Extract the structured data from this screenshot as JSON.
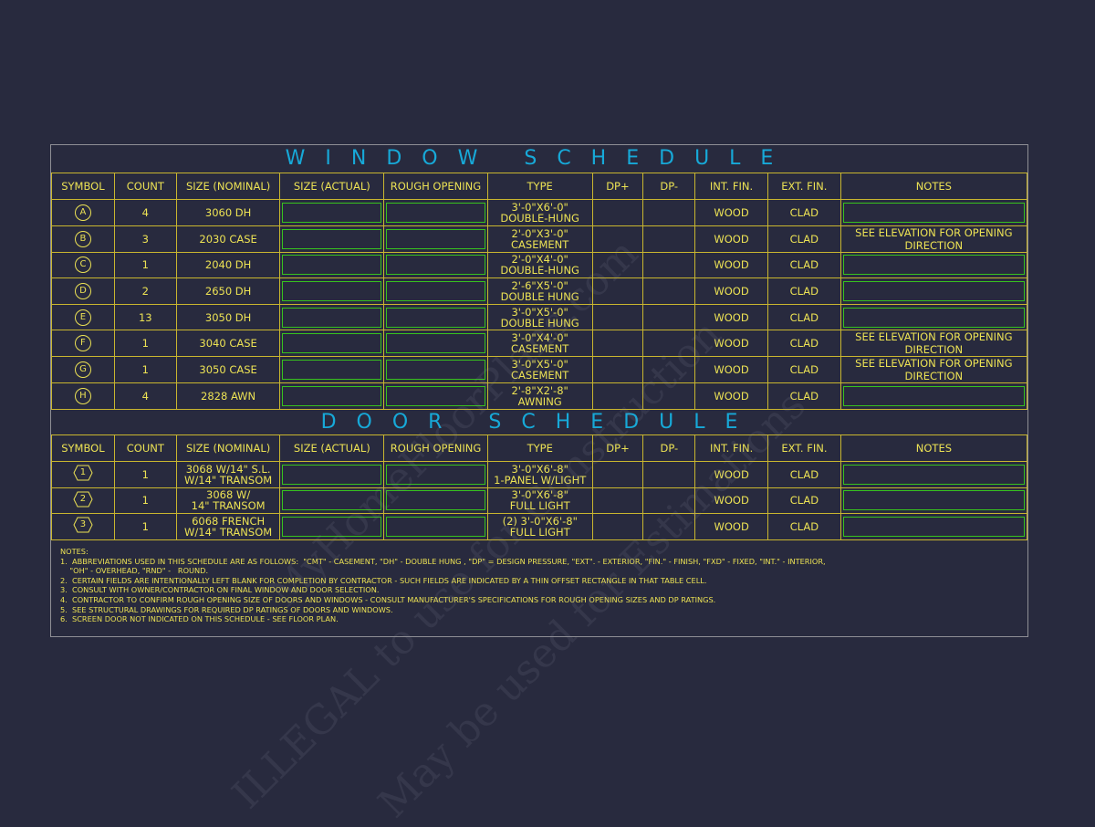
{
  "window_schedule": {
    "title": "WINDOW SCHEDULE",
    "headers": [
      "SYMBOL",
      "COUNT",
      "SIZE (NOMINAL)",
      "SIZE (ACTUAL)",
      "ROUGH OPENING",
      "TYPE",
      "DP+",
      "DP-",
      "INT. FIN.",
      "EXT. FIN.",
      "NOTES"
    ],
    "rows": [
      {
        "symbol": "A",
        "count": "4",
        "size": "3060 DH",
        "type1": "3'-0\"X6'-0\"",
        "type2": "DOUBLE-HUNG",
        "int": "WOOD",
        "ext": "CLAD",
        "notes": ""
      },
      {
        "symbol": "B",
        "count": "3",
        "size": "2030 CASE",
        "type1": "2'-0\"X3'-0\"",
        "type2": "CASEMENT",
        "int": "WOOD",
        "ext": "CLAD",
        "notes": "SEE ELEVATION FOR OPENING DIRECTION"
      },
      {
        "symbol": "C",
        "count": "1",
        "size": "2040 DH",
        "type1": "2'-0\"X4'-0\"",
        "type2": "DOUBLE-HUNG",
        "int": "WOOD",
        "ext": "CLAD",
        "notes": ""
      },
      {
        "symbol": "D",
        "count": "2",
        "size": "2650 DH",
        "type1": "2'-6\"X5'-0\"",
        "type2": "DOUBLE HUNG",
        "int": "WOOD",
        "ext": "CLAD",
        "notes": ""
      },
      {
        "symbol": "E",
        "count": "13",
        "size": "3050 DH",
        "type1": "3'-0\"X5'-0\"",
        "type2": "DOUBLE HUNG",
        "int": "WOOD",
        "ext": "CLAD",
        "notes": ""
      },
      {
        "symbol": "F",
        "count": "1",
        "size": "3040 CASE",
        "type1": "3'-0\"X4'-0\"",
        "type2": "CASEMENT",
        "int": "WOOD",
        "ext": "CLAD",
        "notes": "SEE ELEVATION FOR OPENING DIRECTION"
      },
      {
        "symbol": "G",
        "count": "1",
        "size": "3050 CASE",
        "type1": "3'-0\"X5'-0\"",
        "type2": "CASEMENT",
        "int": "WOOD",
        "ext": "CLAD",
        "notes": "SEE ELEVATION FOR OPENING DIRECTION"
      },
      {
        "symbol": "H",
        "count": "4",
        "size": "2828 AWN",
        "type1": "2'-8\"X2'-8\"",
        "type2": "AWNING",
        "int": "WOOD",
        "ext": "CLAD",
        "notes": ""
      }
    ]
  },
  "door_schedule": {
    "title": "DOOR SCHEDULE",
    "headers": [
      "SYMBOL",
      "COUNT",
      "SIZE (NOMINAL)",
      "SIZE (ACTUAL)",
      "ROUGH OPENING",
      "TYPE",
      "DP+",
      "DP-",
      "INT. FIN.",
      "EXT. FIN.",
      "NOTES"
    ],
    "rows": [
      {
        "symbol": "1",
        "count": "1",
        "size1": "3068 W/14\" S.L.",
        "size2": "W/14\" TRANSOM",
        "type1": "3'-0\"X6'-8\"",
        "type2": "1-PANEL W/LIGHT",
        "int": "WOOD",
        "ext": "CLAD",
        "notes": ""
      },
      {
        "symbol": "2",
        "count": "1",
        "size1": "3068 W/",
        "size2": "14\" TRANSOM",
        "type1": "3'-0\"X6'-8\"",
        "type2": "FULL LIGHT",
        "int": "WOOD",
        "ext": "CLAD",
        "notes": ""
      },
      {
        "symbol": "3",
        "count": "1",
        "size1": "6068 FRENCH",
        "size2": "W/14\" TRANSOM",
        "type1": "(2) 3'-0\"X6'-8\"",
        "type2": "FULL LIGHT",
        "int": "WOOD",
        "ext": "CLAD",
        "notes": ""
      }
    ]
  },
  "notes": {
    "heading": "NOTES:",
    "lines": [
      "1.  ABBREVIATIONS USED IN THIS SCHEDULE ARE AS FOLLOWS:  \"CMT\" - CASEMENT, \"DH\" - DOUBLE HUNG , \"DP\" = DESIGN PRESSURE, \"EXT\". - EXTERIOR, \"FIN.\" - FINISH, \"FXD\" - FIXED, \"INT.\" - INTERIOR,",
      "    \"OH\" - OVERHEAD, \"RND\" -   ROUND.",
      "2.  CERTAIN FIELDS ARE INTENTIONALLY LEFT BLANK FOR COMPLETION BY CONTRACTOR - SUCH FIELDS ARE INDICATED BY A THIN OFFSET RECTANGLE IN THAT TABLE CELL.",
      "3.  CONSULT WITH OWNER/CONTRACTOR ON FINAL WINDOW AND DOOR SELECTION.",
      "4.  CONTRACTOR TO CONFIRM ROUGH OPENING SIZE OF DOORS AND WINDOWS - CONSULT MANUFACTURER'S SPECIFICATIONS FOR ROUGH OPENING SIZES AND DP RATINGS.",
      "5.  SEE STRUCTURAL DRAWINGS FOR REQUIRED DP RATINGS OF DOORS AND WINDOWS.",
      "6.  SCREEN DOOR NOT INDICATED ON THIS SCHEDULE - SEE FLOOR PLAN."
    ]
  },
  "watermark": {
    "line1": "MyHomeFloorPlans.com",
    "line2": "ILLEGAL to use for Construction",
    "line3": "May be used for Estimations"
  },
  "colors": {
    "background": "#282a3e",
    "grid": "#c9b62f",
    "text": "#ece254",
    "title": "#17a9d8",
    "blank_field": "#37c21e"
  }
}
